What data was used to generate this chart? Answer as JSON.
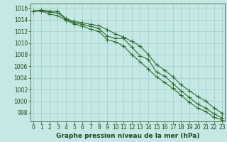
{
  "x": [
    0,
    1,
    2,
    3,
    4,
    5,
    6,
    7,
    8,
    9,
    10,
    11,
    12,
    13,
    14,
    15,
    16,
    17,
    18,
    19,
    20,
    21,
    22,
    23
  ],
  "line1": [
    1015.5,
    1015.6,
    1015.3,
    1015.2,
    1014.1,
    1013.5,
    1013.2,
    1012.9,
    1012.5,
    1011.2,
    1010.8,
    1010.8,
    1009.3,
    1007.8,
    1007.2,
    1005.0,
    1004.3,
    1003.0,
    1001.8,
    1000.6,
    999.5,
    998.8,
    997.8,
    997.1
  ],
  "line2": [
    1015.5,
    1015.7,
    1015.5,
    1015.5,
    1014.2,
    1013.7,
    1013.5,
    1013.2,
    1013.0,
    1012.3,
    1011.6,
    1011.0,
    1010.3,
    1009.5,
    1008.0,
    1006.3,
    1005.3,
    1004.2,
    1002.8,
    1001.8,
    1000.8,
    1000.0,
    998.8,
    997.9
  ],
  "line3": [
    1015.5,
    1015.5,
    1015.0,
    1014.7,
    1013.9,
    1013.3,
    1012.9,
    1012.4,
    1012.0,
    1010.6,
    1010.2,
    1009.5,
    1008.0,
    1006.8,
    1005.5,
    1004.2,
    1003.2,
    1002.2,
    1001.0,
    999.8,
    998.8,
    998.2,
    997.2,
    996.8
  ],
  "line_color": "#2d6a2d",
  "bg_color": "#c5e8e5",
  "grid_color": "#9ecece",
  "ylabel_values": [
    998,
    1000,
    1002,
    1004,
    1006,
    1008,
    1010,
    1012,
    1014,
    1016
  ],
  "ylim": [
    996.5,
    1016.8
  ],
  "xlim": [
    -0.3,
    23.3
  ],
  "xlabel": "Graphe pression niveau de la mer (hPa)",
  "xlabel_color": "#1a4a1a",
  "tick_color": "#1a4a1a",
  "markersize": 2.2,
  "linewidth": 0.8,
  "label_fontsize": 5.5,
  "xlabel_fontsize": 6.5
}
